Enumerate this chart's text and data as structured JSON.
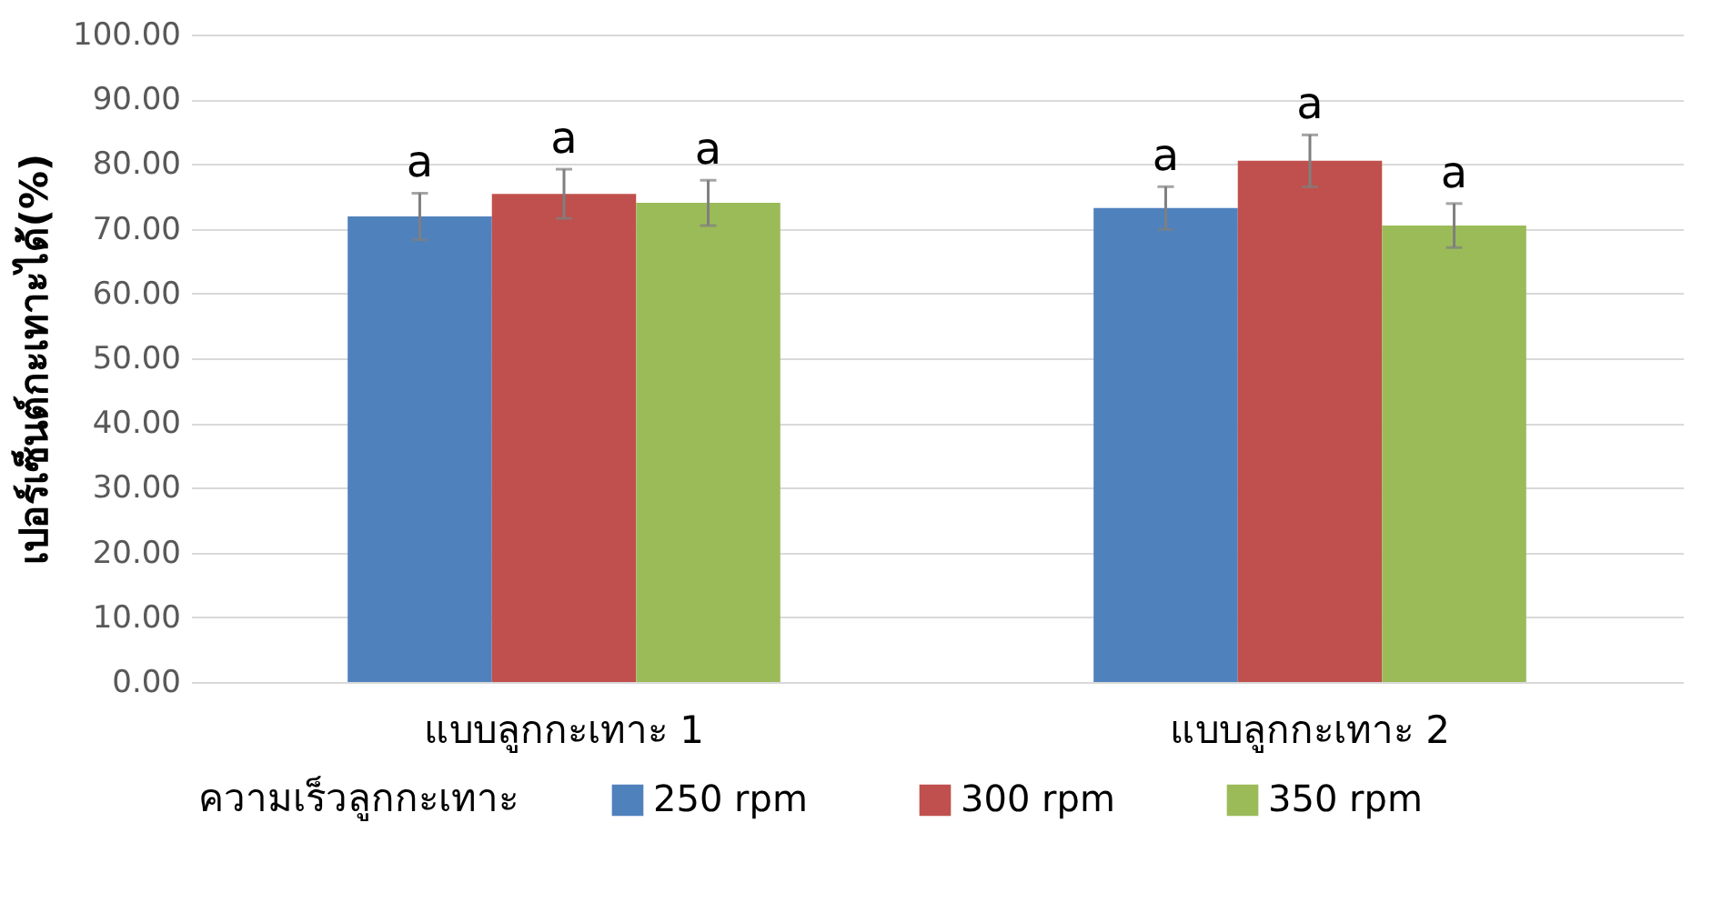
{
  "chart_data": {
    "type": "bar",
    "ylabel": "เปอร์เซ็นต์กะเทาะได้(%)",
    "legend_title": "ความเร็วลูกกะเทาะ",
    "categories": [
      "แบบลูกกะเทาะ 1",
      "แบบลูกกะเทาะ 2"
    ],
    "series": [
      {
        "name": "250 rpm",
        "color": "#4f81bd",
        "values": [
          71.9,
          73.2
        ],
        "errors": [
          3.6,
          3.3
        ],
        "value_labels": [
          "a",
          "a"
        ]
      },
      {
        "name": "300 rpm",
        "color": "#c0504d",
        "values": [
          75.4,
          80.5
        ],
        "errors": [
          3.8,
          4.0
        ],
        "value_labels": [
          "a",
          "a"
        ]
      },
      {
        "name": "350 rpm",
        "color": "#9bbb59",
        "values": [
          74.0,
          70.5
        ],
        "errors": [
          3.5,
          3.4
        ],
        "value_labels": [
          "a",
          "a"
        ]
      }
    ],
    "ylim": [
      0,
      100
    ],
    "yticks": [
      {
        "value": 0,
        "label": "0.00"
      },
      {
        "value": 10,
        "label": "10.00"
      },
      {
        "value": 20,
        "label": "20.00"
      },
      {
        "value": 30,
        "label": "30.00"
      },
      {
        "value": 40,
        "label": "40.00"
      },
      {
        "value": 50,
        "label": "50.00"
      },
      {
        "value": 60,
        "label": "60.00"
      },
      {
        "value": 70,
        "label": "70.00"
      },
      {
        "value": 80,
        "label": "80.00"
      },
      {
        "value": 90,
        "label": "90.00"
      },
      {
        "value": 100,
        "label": "100.00"
      }
    ],
    "grid": "y",
    "legend": "bottom"
  }
}
